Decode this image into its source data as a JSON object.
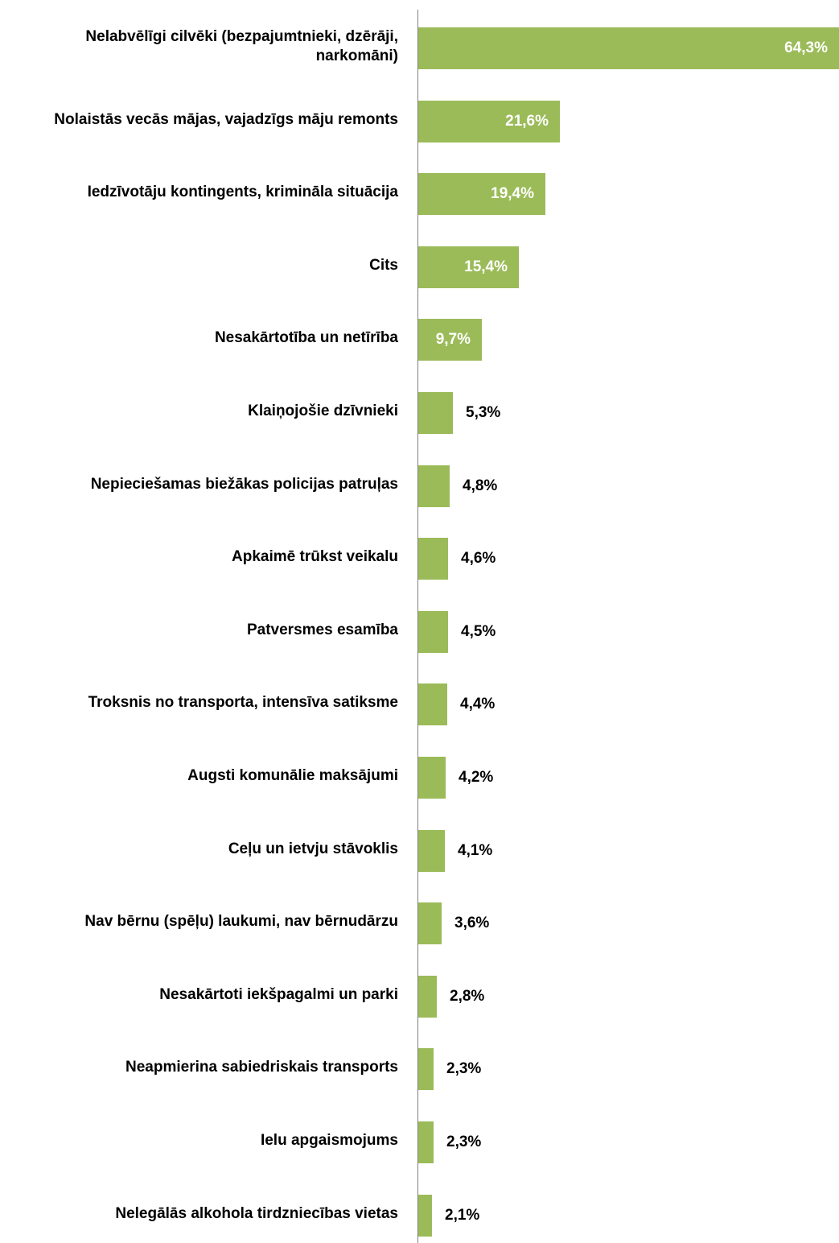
{
  "chart_data": {
    "type": "bar",
    "orientation": "horizontal",
    "categories": [
      "Nelabvēlīgi cilvēki (bezpajumtnieki, dzērāji, narkomāni)",
      "Nolaistās vecās mājas, vajadzīgs māju remonts",
      "Iedzīvotāju kontingents, krimināla situācija",
      "Cits",
      "Nesakārtotība un netīrība",
      "Klaiņojošie dzīvnieki",
      "Nepieciešamas biežākas policijas patruļas",
      "Apkaimē trūkst veikalu",
      "Patversmes esamība",
      "Troksnis no transporta, intensīva satiksme",
      "Augsti komunālie maksājumi",
      "Ceļu un ietvju stāvoklis",
      "Nav bērnu (spēļu) laukumi, nav bērnudārzu",
      "Nesakārtoti iekšpagalmi un parki",
      "Neapmierina sabiedriskais transports",
      "Ielu apgaismojums",
      "Nelegālās alkohola tirdzniecības vietas"
    ],
    "label_lines": [
      [
        "Nelabvēlīgi cilvēki (bezpajumtnieki, dzērāji,",
        "narkomāni)"
      ],
      [
        "Nolaistās vecās mājas, vajadzīgs māju remonts"
      ],
      [
        "Iedzīvotāju kontingents, krimināla situācija"
      ],
      [
        "Cits"
      ],
      [
        "Nesakārtotība un netīrība"
      ],
      [
        "Klaiņojošie dzīvnieki"
      ],
      [
        "Nepieciešamas biežākas policijas patruļas"
      ],
      [
        "Apkaimē trūkst veikalu"
      ],
      [
        "Patversmes esamība"
      ],
      [
        "Troksnis no transporta, intensīva satiksme"
      ],
      [
        "Augsti komunālie maksājumi"
      ],
      [
        "Ceļu un ietvju stāvoklis"
      ],
      [
        "Nav bērnu (spēļu) laukumi, nav bērnudārzu"
      ],
      [
        "Nesakārtoti iekšpagalmi un parki"
      ],
      [
        "Neapmierina sabiedriskais transports"
      ],
      [
        "Ielu apgaismojums"
      ],
      [
        "Nelegālās alkohola tirdzniecības vietas"
      ]
    ],
    "values": [
      64.3,
      21.6,
      19.4,
      15.4,
      9.7,
      5.3,
      4.8,
      4.6,
      4.5,
      4.4,
      4.2,
      4.1,
      3.6,
      2.8,
      2.3,
      2.3,
      2.1
    ],
    "value_labels": [
      "64,3%",
      "21,6%",
      "19,4%",
      "15,4%",
      "9,7%",
      "5,3%",
      "4,8%",
      "4,6%",
      "4,5%",
      "4,4%",
      "4,2%",
      "4,1%",
      "3,6%",
      "2,8%",
      "2,3%",
      "2,3%",
      "2,1%"
    ],
    "xlim": [
      0,
      64.3
    ],
    "grid": false,
    "legend": "none",
    "bar_color": "#9bbb59",
    "label_inside_color": "#ffffff",
    "label_outside_color": "#000000"
  }
}
